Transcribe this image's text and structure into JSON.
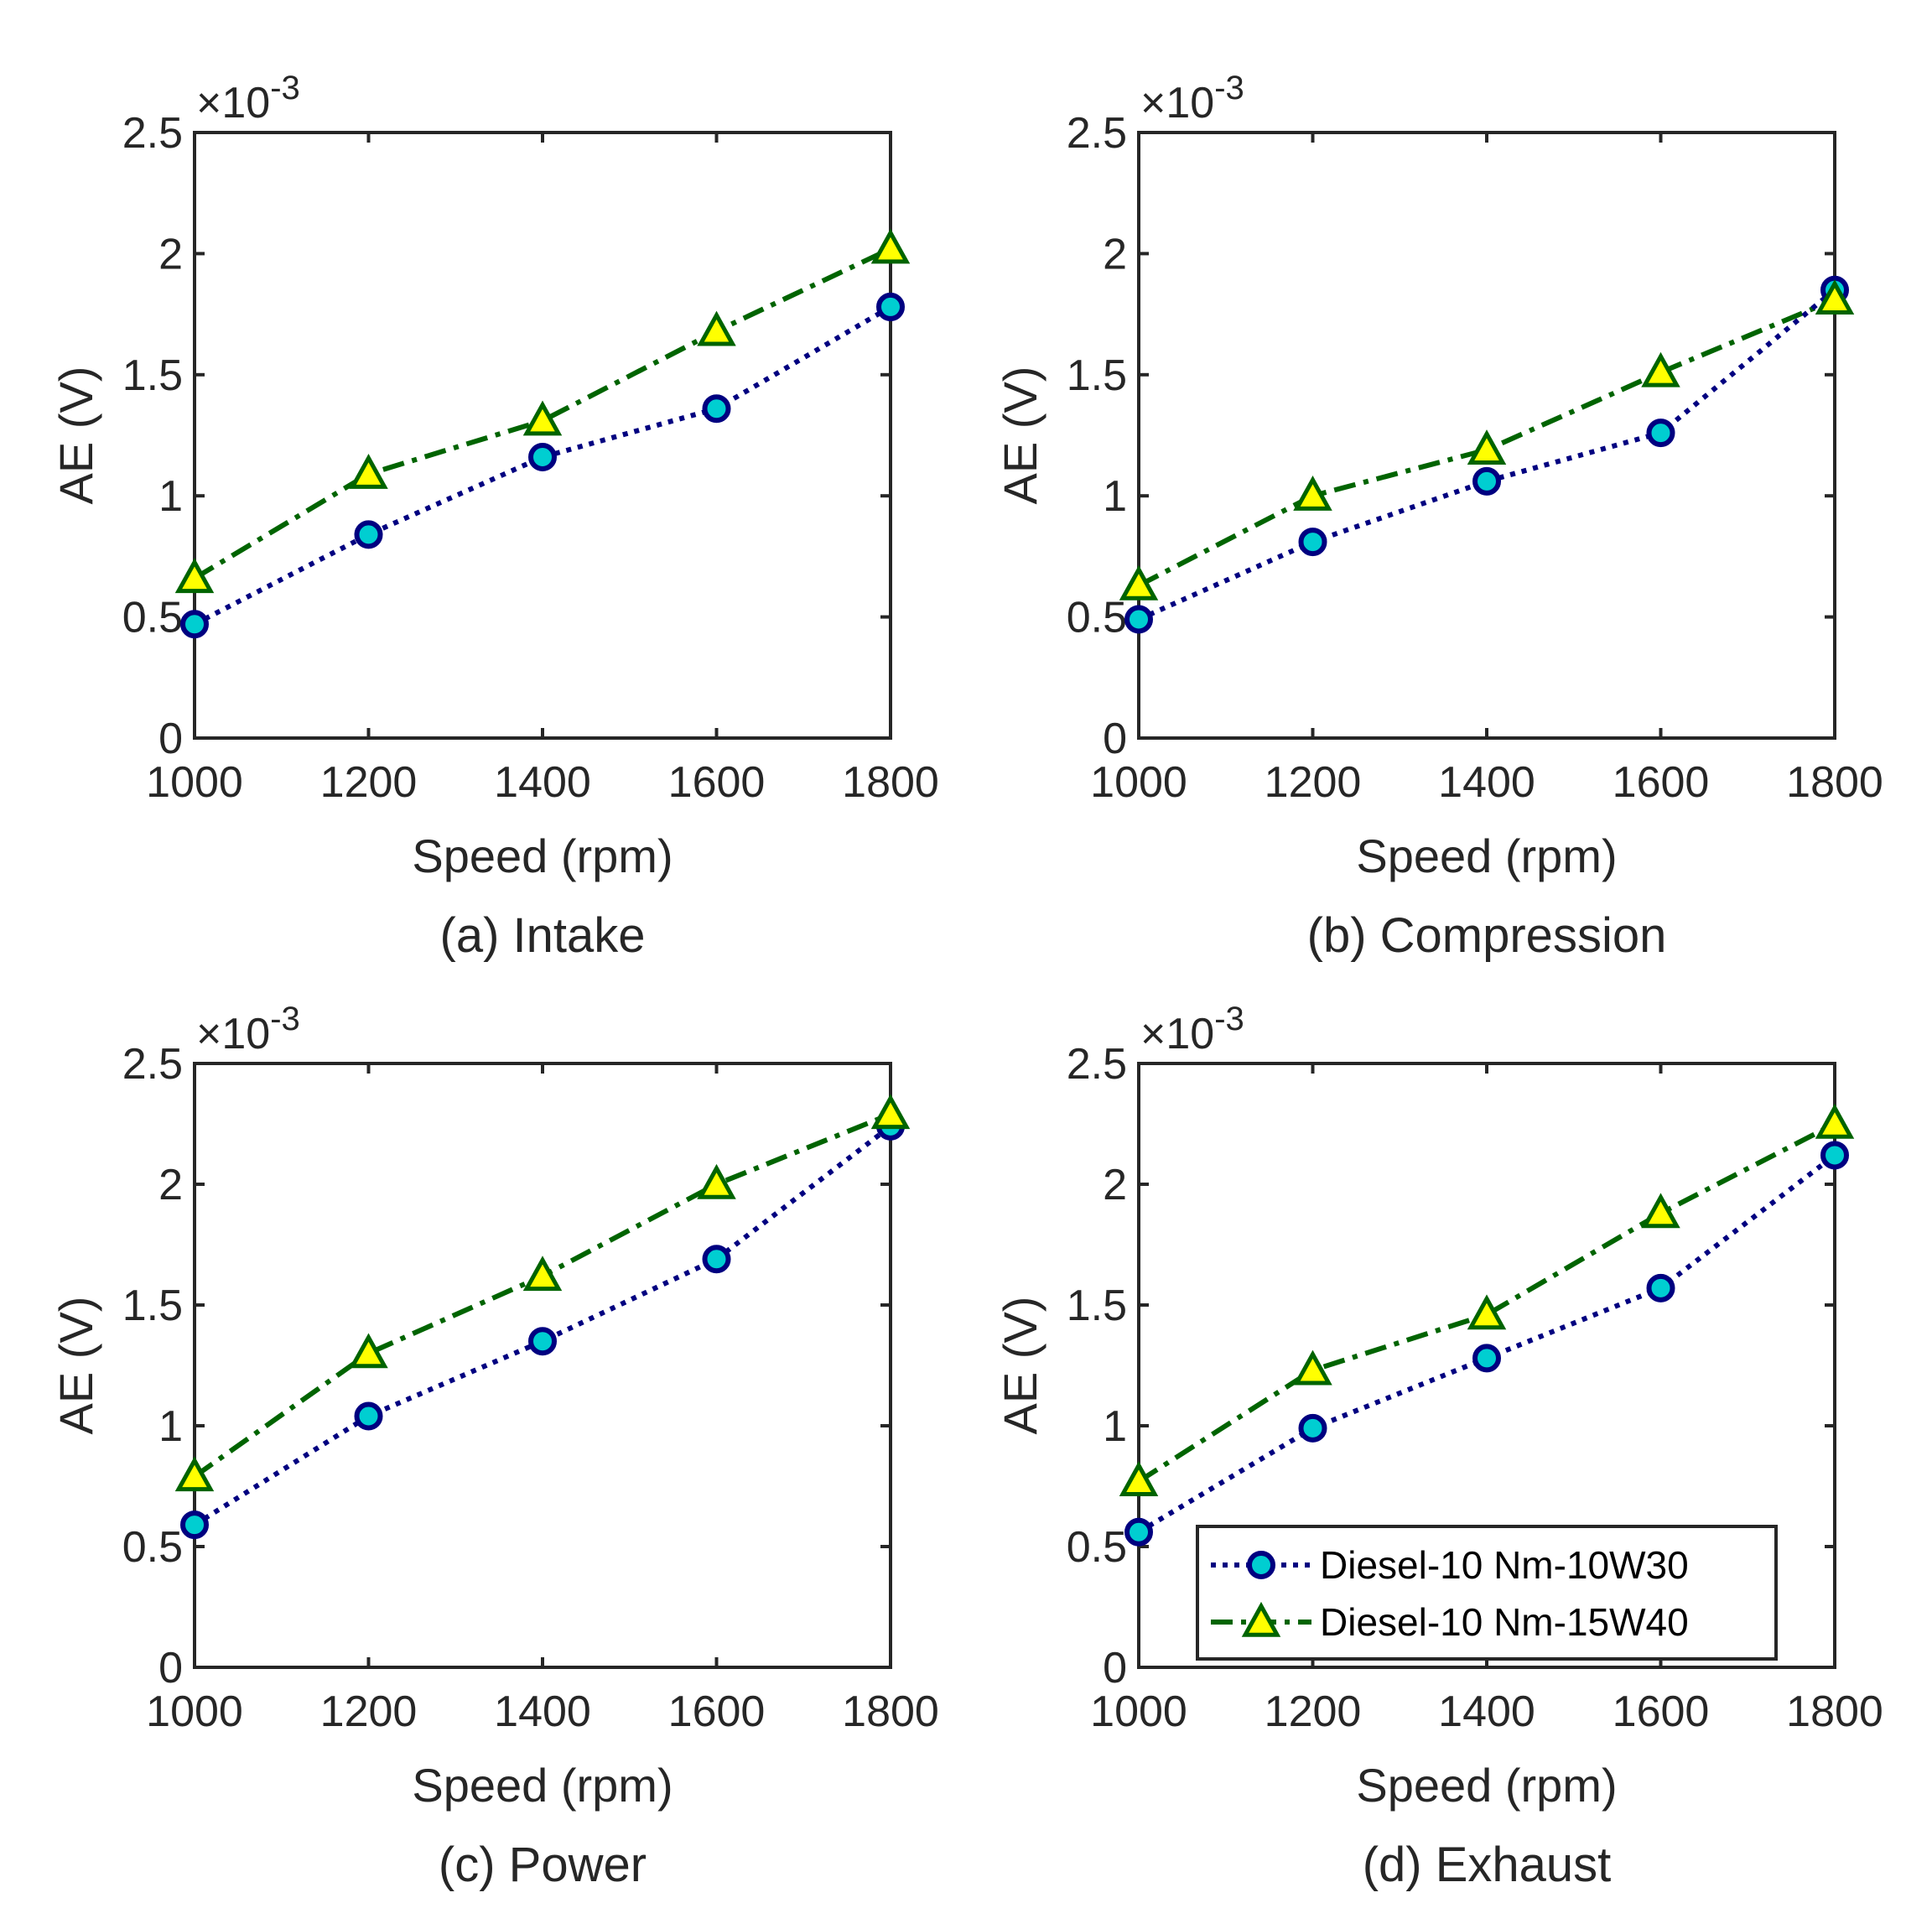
{
  "colors": {
    "series1_line": "#000080",
    "series1_marker_fill": "#00CED1",
    "series2_line": "#006400",
    "series2_marker_fill": "#FFFF00",
    "axis": "#262626"
  },
  "chart_data": [
    {
      "type": "line",
      "panel": "a",
      "caption": "(a) Intake",
      "xlabel": "Speed (rpm)",
      "ylabel": "AE (V)",
      "y_exponent_label": "×10",
      "y_exponent": "-3",
      "x": [
        1000,
        1200,
        1400,
        1600,
        1800
      ],
      "xlim": [
        1000,
        1800
      ],
      "ylim": [
        0,
        2.5
      ],
      "x_ticks": [
        "1000",
        "1200",
        "1400",
        "1600",
        "1800"
      ],
      "y_ticks": [
        "0",
        "0.5",
        "1",
        "1.5",
        "2",
        "2.5"
      ],
      "series": [
        {
          "name": "Diesel-10 Nm-10W30",
          "values": [
            0.47,
            0.84,
            1.16,
            1.36,
            1.78
          ]
        },
        {
          "name": "Diesel-10 Nm-15W40",
          "values": [
            0.66,
            1.09,
            1.31,
            1.68,
            2.02
          ]
        }
      ]
    },
    {
      "type": "line",
      "panel": "b",
      "caption": "(b) Compression",
      "xlabel": "Speed (rpm)",
      "ylabel": "AE (V)",
      "y_exponent_label": "×10",
      "y_exponent": "-3",
      "x": [
        1000,
        1200,
        1400,
        1600,
        1800
      ],
      "xlim": [
        1000,
        1800
      ],
      "ylim": [
        0,
        2.5
      ],
      "x_ticks": [
        "1000",
        "1200",
        "1400",
        "1600",
        "1800"
      ],
      "y_ticks": [
        "0",
        "0.5",
        "1",
        "1.5",
        "2",
        "2.5"
      ],
      "series": [
        {
          "name": "Diesel-10 Nm-10W30",
          "values": [
            0.49,
            0.81,
            1.06,
            1.26,
            1.85
          ]
        },
        {
          "name": "Diesel-10 Nm-15W40",
          "values": [
            0.63,
            1.0,
            1.19,
            1.51,
            1.81
          ]
        }
      ]
    },
    {
      "type": "line",
      "panel": "c",
      "caption": "(c) Power",
      "xlabel": "Speed (rpm)",
      "ylabel": "AE (V)",
      "y_exponent_label": "×10",
      "y_exponent": "-3",
      "x": [
        1000,
        1200,
        1400,
        1600,
        1800
      ],
      "xlim": [
        1000,
        1800
      ],
      "ylim": [
        0,
        2.5
      ],
      "x_ticks": [
        "1000",
        "1200",
        "1400",
        "1600",
        "1800"
      ],
      "y_ticks": [
        "0",
        "0.5",
        "1",
        "1.5",
        "2",
        "2.5"
      ],
      "series": [
        {
          "name": "Diesel-10 Nm-10W30",
          "values": [
            0.59,
            1.04,
            1.35,
            1.69,
            2.24
          ]
        },
        {
          "name": "Diesel-10 Nm-15W40",
          "values": [
            0.79,
            1.3,
            1.62,
            2.0,
            2.29
          ]
        }
      ]
    },
    {
      "type": "line",
      "panel": "d",
      "caption": "(d) Exhaust",
      "xlabel": "Speed (rpm)",
      "ylabel": "AE (V)",
      "y_exponent_label": "×10",
      "y_exponent": "-3",
      "x": [
        1000,
        1200,
        1400,
        1600,
        1800
      ],
      "xlim": [
        1000,
        1800
      ],
      "ylim": [
        0,
        2.5
      ],
      "x_ticks": [
        "1000",
        "1200",
        "1400",
        "1600",
        "1800"
      ],
      "y_ticks": [
        "0",
        "0.5",
        "1",
        "1.5",
        "2",
        "2.5"
      ],
      "legend": {
        "placement": "bottom-right",
        "entries": [
          "Diesel-10 Nm-10W30",
          "Diesel-10 Nm-15W40"
        ]
      },
      "series": [
        {
          "name": "Diesel-10 Nm-10W30",
          "values": [
            0.56,
            0.99,
            1.28,
            1.57,
            2.12
          ]
        },
        {
          "name": "Diesel-10 Nm-15W40",
          "values": [
            0.77,
            1.23,
            1.46,
            1.88,
            2.25
          ]
        }
      ]
    }
  ]
}
